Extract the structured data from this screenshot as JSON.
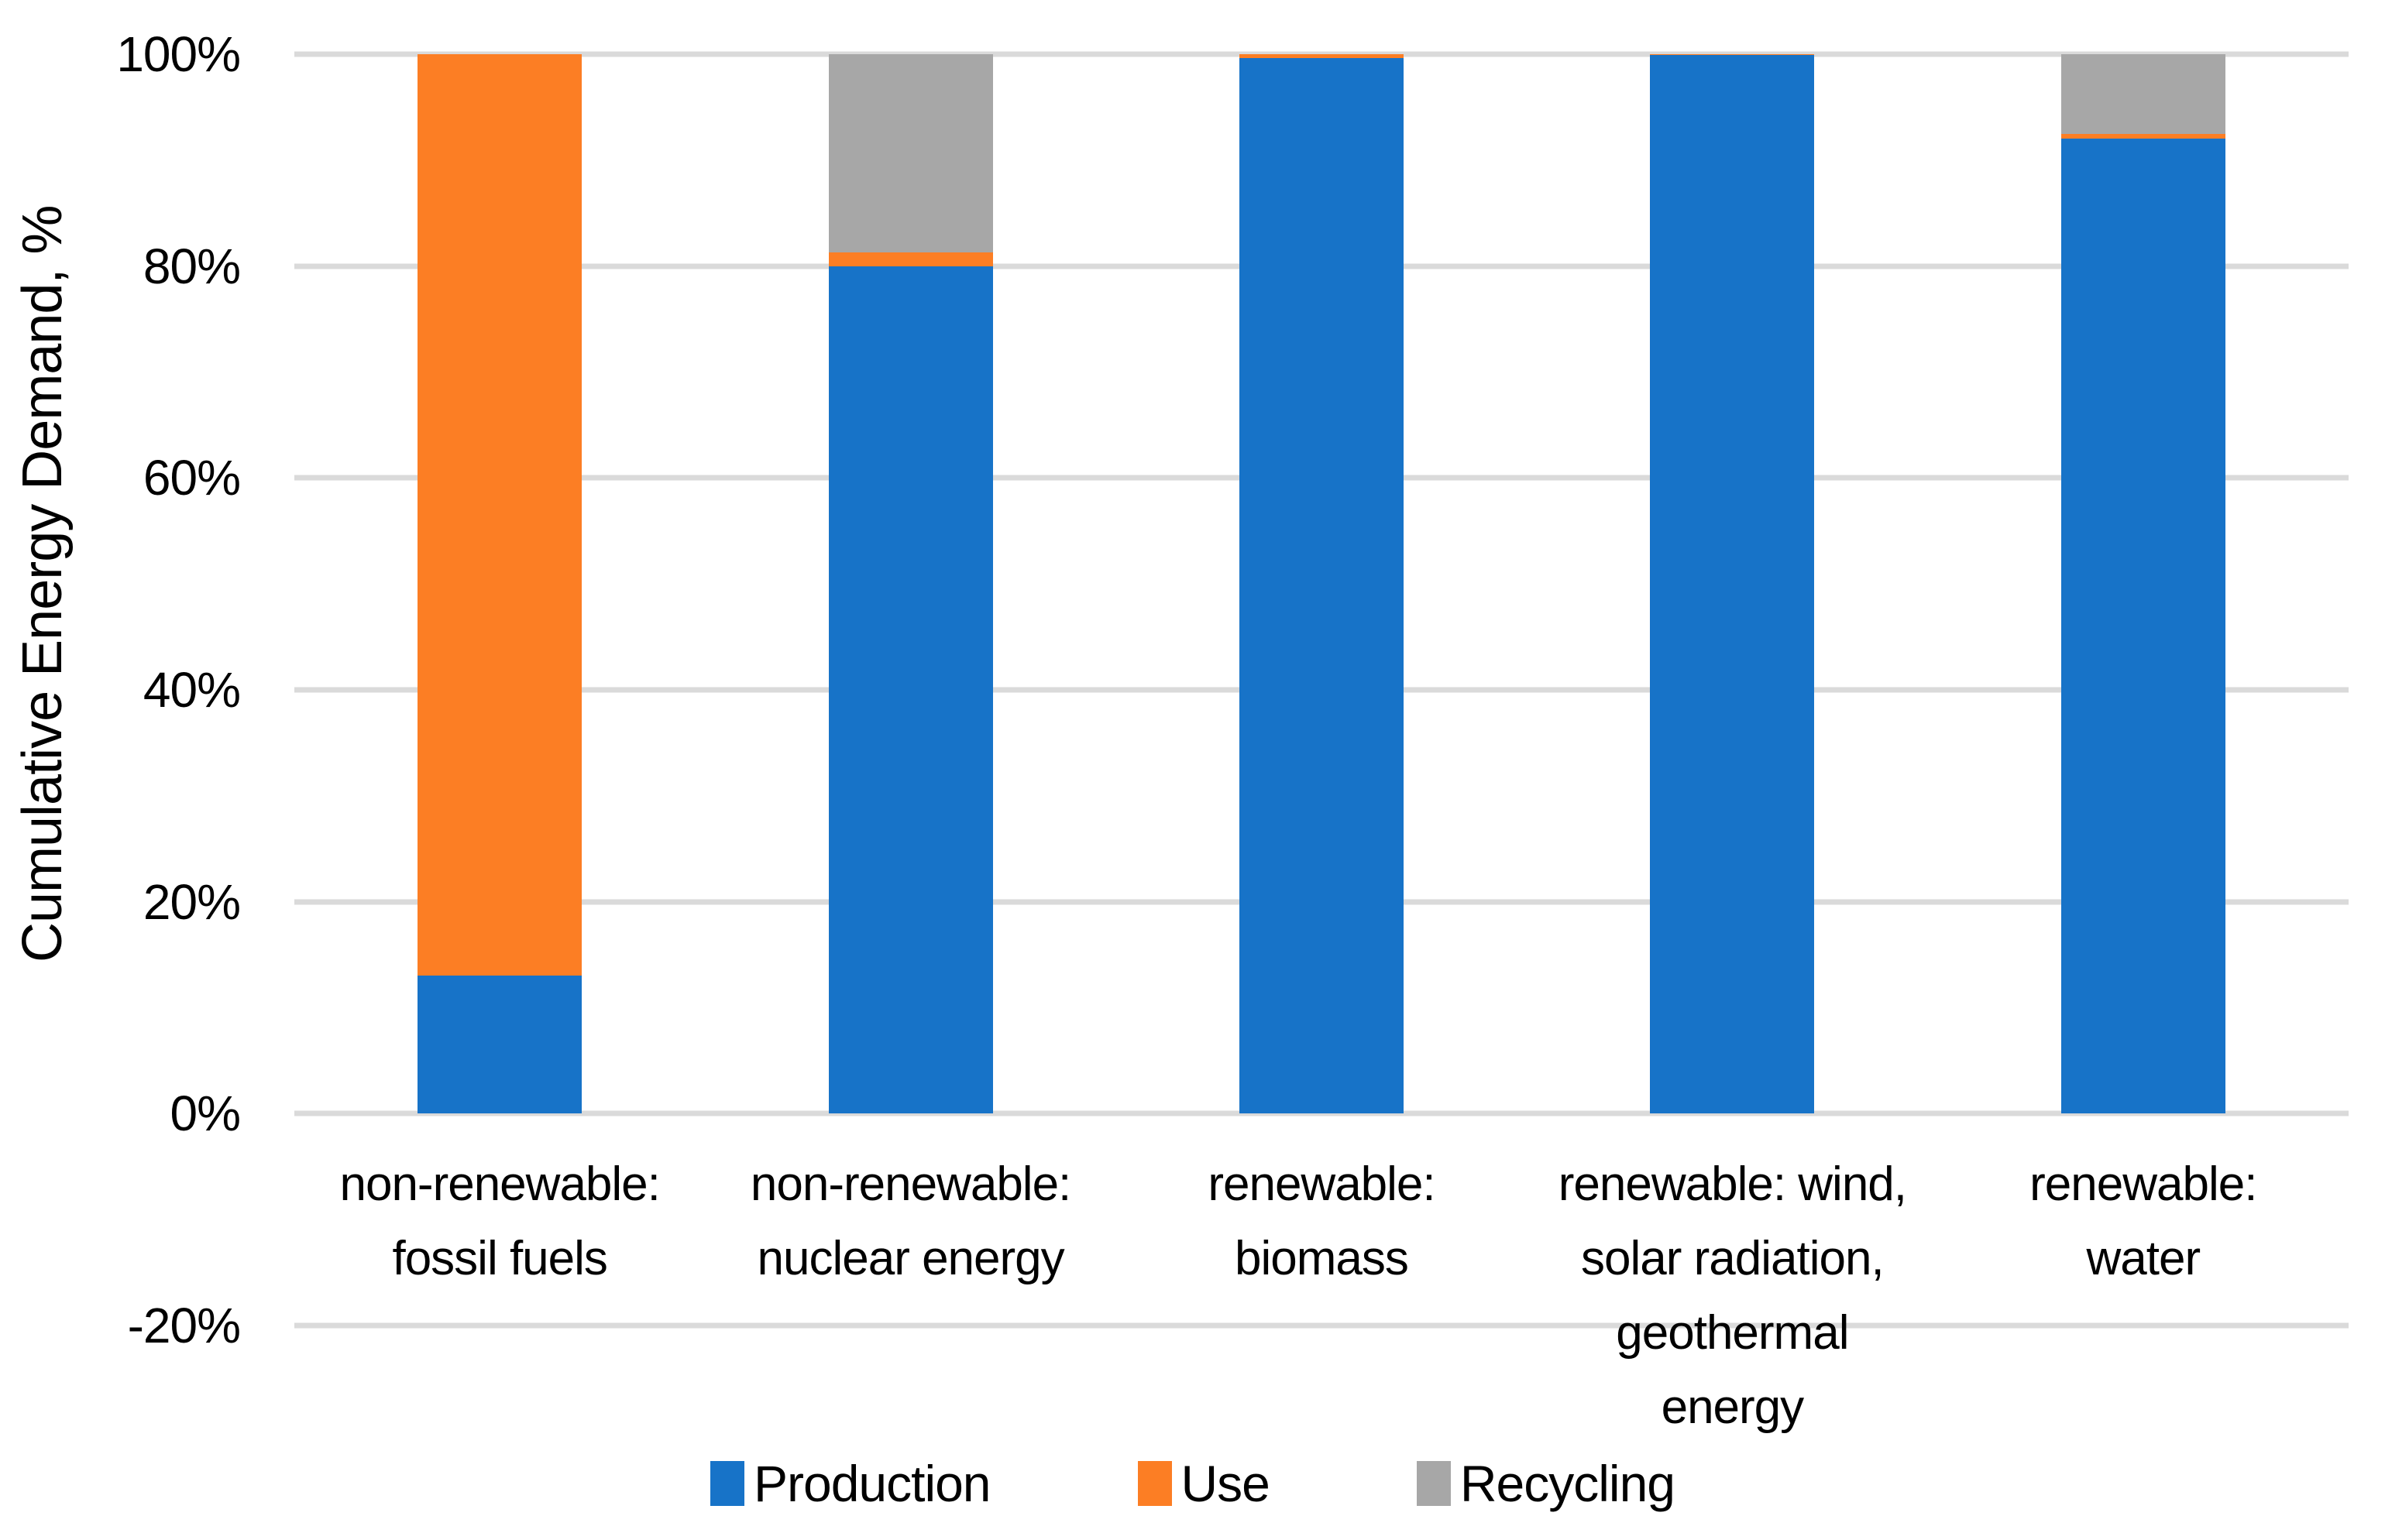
{
  "chart_data": {
    "type": "bar",
    "stacked": true,
    "title": "",
    "xlabel": "",
    "ylabel": "Cumulative Energy Demand, %",
    "ylim": [
      -20,
      100
    ],
    "ytick_step": 20,
    "ytick_suffix": "%",
    "grid": "horizontal",
    "legend_position": "bottom",
    "categories": [
      "non-renewable:\nfossil fuels",
      "non-renewable:\nnuclear energy",
      "renewable:\nbiomass",
      "renewable: wind,\nsolar radiation,\ngeothermal\nenergy",
      "renewable:\nwater"
    ],
    "series": [
      {
        "name": "Production",
        "color": "#1773C8",
        "values": [
          13,
          80,
          99.6,
          99.9,
          92
        ]
      },
      {
        "name": "Use",
        "color": "#FC7E24",
        "values": [
          87,
          1.3,
          0.4,
          0.1,
          0.5
        ]
      },
      {
        "name": "Recycling",
        "color": "#A7A7A7",
        "values": [
          0,
          18.7,
          0,
          0,
          7.5
        ]
      }
    ],
    "colors": {
      "grid": "#DADADA",
      "text": "#000000",
      "background": "#FFFFFF"
    }
  }
}
